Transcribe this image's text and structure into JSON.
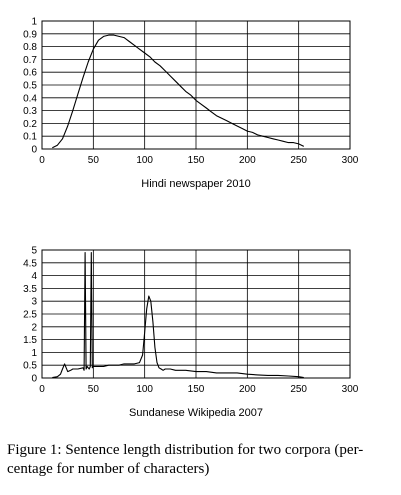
{
  "chart_data": [
    {
      "type": "line",
      "xlabel": "Hindi newspaper 2010",
      "ylabel": "",
      "xlim": [
        0,
        300
      ],
      "ylim": [
        0,
        1
      ],
      "x_ticks": [
        "0",
        "50",
        "100",
        "150",
        "200",
        "250",
        "300"
      ],
      "y_ticks": [
        "0",
        "0.1",
        "0.2",
        "0.3",
        "0.4",
        "0.5",
        "0.6",
        "0.7",
        "0.8",
        "0.9",
        "1"
      ],
      "grid": true,
      "series": [
        {
          "x": [
            10,
            15,
            20,
            25,
            30,
            35,
            40,
            45,
            50,
            55,
            60,
            65,
            70,
            75,
            80,
            85,
            90,
            95,
            100,
            105,
            110,
            115,
            120,
            125,
            130,
            135,
            140,
            145,
            150,
            155,
            160,
            165,
            170,
            175,
            180,
            185,
            190,
            195,
            200,
            205,
            210,
            215,
            220,
            225,
            230,
            235,
            240,
            245,
            250,
            255
          ],
          "y": [
            0.01,
            0.03,
            0.08,
            0.18,
            0.3,
            0.43,
            0.56,
            0.68,
            0.78,
            0.85,
            0.88,
            0.89,
            0.89,
            0.88,
            0.87,
            0.84,
            0.81,
            0.78,
            0.75,
            0.72,
            0.68,
            0.65,
            0.61,
            0.57,
            0.53,
            0.49,
            0.45,
            0.42,
            0.38,
            0.35,
            0.32,
            0.29,
            0.26,
            0.24,
            0.22,
            0.2,
            0.18,
            0.16,
            0.14,
            0.13,
            0.11,
            0.1,
            0.09,
            0.08,
            0.07,
            0.06,
            0.05,
            0.05,
            0.04,
            0.02
          ]
        }
      ]
    },
    {
      "type": "line",
      "xlabel": "Sundanese Wikipedia 2007",
      "ylabel": "",
      "xlim": [
        0,
        300
      ],
      "ylim": [
        0,
        5
      ],
      "x_ticks": [
        "0",
        "50",
        "100",
        "150",
        "200",
        "250",
        "300"
      ],
      "y_ticks": [
        "0",
        "0.5",
        "1",
        "1.5",
        "2",
        "2.5",
        "3",
        "3.5",
        "4",
        "4.5",
        "5"
      ],
      "grid": true,
      "series": [
        {
          "x": [
            10,
            15,
            18,
            20,
            22,
            25,
            28,
            30,
            35,
            40,
            41,
            42,
            43,
            44,
            45,
            46,
            47,
            48,
            49,
            50,
            55,
            60,
            65,
            70,
            75,
            80,
            85,
            90,
            95,
            98,
            100,
            102,
            104,
            106,
            108,
            110,
            112,
            114,
            116,
            118,
            120,
            125,
            130,
            135,
            140,
            150,
            160,
            170,
            180,
            190,
            200,
            210,
            220,
            230,
            240,
            250,
            255
          ],
          "y": [
            0.02,
            0.05,
            0.15,
            0.35,
            0.55,
            0.25,
            0.3,
            0.35,
            0.35,
            0.4,
            0.3,
            4.9,
            0.35,
            0.45,
            0.4,
            0.35,
            0.45,
            4.9,
            0.4,
            0.45,
            0.45,
            0.45,
            0.5,
            0.5,
            0.5,
            0.55,
            0.55,
            0.55,
            0.6,
            0.9,
            1.8,
            2.7,
            3.2,
            3.0,
            2.2,
            1.2,
            0.6,
            0.4,
            0.35,
            0.3,
            0.35,
            0.35,
            0.3,
            0.3,
            0.3,
            0.25,
            0.25,
            0.2,
            0.2,
            0.2,
            0.15,
            0.12,
            0.1,
            0.1,
            0.08,
            0.05,
            0.02
          ]
        }
      ]
    }
  ],
  "caption": {
    "line1": "Figure 1: Sentence length distribution for two corpora (per-",
    "line2": "centage for number of characters)"
  }
}
